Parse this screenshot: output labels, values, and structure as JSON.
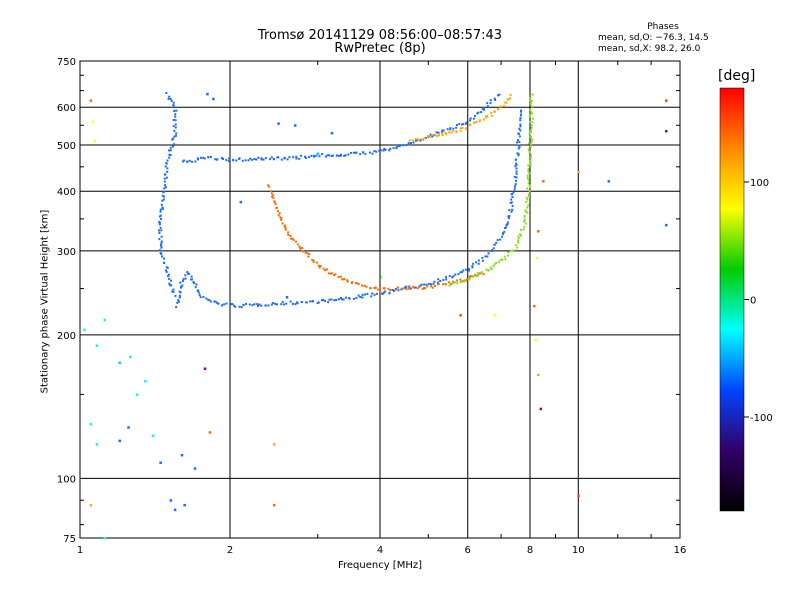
{
  "chart_data": {
    "type": "scatter",
    "title": "Tromsø 20141129 08:56:00–08:57:43",
    "subtitle": "RwPretec (8p)",
    "xlabel": "Frequency [MHz]",
    "ylabel": "Stationary phase Virtual Height [km]",
    "x_scale": "log",
    "y_scale": "log",
    "xlim": [
      1,
      16
    ],
    "ylim": [
      75,
      750
    ],
    "x_ticks": [
      1,
      2,
      4,
      6,
      8,
      10,
      16
    ],
    "y_ticks": [
      75,
      100,
      200,
      300,
      400,
      500,
      600,
      750
    ],
    "grid": true,
    "phase_stats": {
      "header": "Phases",
      "line_o": "mean, sd,O: −76.3, 14.5",
      "line_x": "mean, sd,X:  98.2, 26.0"
    },
    "colorbar": {
      "label": "[deg]",
      "ticks": [
        100,
        0,
        -100
      ],
      "range": [
        -180,
        180
      ],
      "colors": [
        "#ff0000",
        "#ff8800",
        "#ffff00",
        "#00cc00",
        "#00ffff",
        "#0044ff",
        "#330066",
        "#000000"
      ]
    },
    "traces": [
      {
        "color": "#1a6bff",
        "points": [
          [
            1.57,
            230
          ],
          [
            1.6,
            260
          ],
          [
            1.65,
            270
          ],
          [
            1.75,
            240
          ],
          [
            1.9,
            232
          ],
          [
            2.1,
            230
          ],
          [
            2.4,
            232
          ],
          [
            2.8,
            234
          ],
          [
            3.2,
            236
          ],
          [
            3.6,
            240
          ],
          [
            4.0,
            244
          ],
          [
            4.5,
            250
          ],
          [
            5.0,
            256
          ],
          [
            5.5,
            264
          ],
          [
            6.0,
            274
          ],
          [
            6.5,
            290
          ],
          [
            7.0,
            320
          ],
          [
            7.3,
            360
          ],
          [
            7.5,
            430
          ],
          [
            7.6,
            520
          ],
          [
            7.65,
            600
          ]
        ]
      },
      {
        "color": "#ff6a00",
        "points": [
          [
            2.4,
            410
          ],
          [
            2.5,
            360
          ],
          [
            2.6,
            330
          ],
          [
            2.8,
            300
          ],
          [
            3.0,
            280
          ],
          [
            3.2,
            268
          ],
          [
            3.5,
            258
          ],
          [
            3.8,
            252
          ],
          [
            4.1,
            249
          ],
          [
            4.5,
            250
          ],
          [
            5.0,
            252
          ],
          [
            5.5,
            256
          ],
          [
            6.0,
            262
          ],
          [
            6.5,
            270
          ]
        ]
      },
      {
        "color": "#88dd22",
        "points": [
          [
            5.5,
            255
          ],
          [
            6.0,
            262
          ],
          [
            6.5,
            272
          ],
          [
            7.0,
            285
          ],
          [
            7.5,
            305
          ],
          [
            7.8,
            340
          ],
          [
            7.95,
            400
          ],
          [
            8.0,
            480
          ],
          [
            8.05,
            560
          ],
          [
            8.05,
            640
          ]
        ]
      },
      {
        "color": "#1a6bff",
        "points": [
          [
            1.6,
            460
          ],
          [
            1.8,
            470
          ],
          [
            2.0,
            465
          ],
          [
            2.3,
            468
          ],
          [
            2.7,
            470
          ],
          [
            3.0,
            475
          ],
          [
            3.5,
            478
          ],
          [
            4.0,
            485
          ],
          [
            4.5,
            500
          ],
          [
            5.0,
            520
          ],
          [
            5.5,
            540
          ],
          [
            6.0,
            560
          ],
          [
            6.5,
            600
          ],
          [
            7.0,
            640
          ]
        ]
      },
      {
        "color": "#ffaa00",
        "points": [
          [
            4.6,
            510
          ],
          [
            5.0,
            520
          ],
          [
            5.5,
            530
          ],
          [
            6.0,
            545
          ],
          [
            6.5,
            570
          ],
          [
            7.0,
            600
          ],
          [
            7.4,
            640
          ]
        ]
      },
      {
        "color": "#1a6bff",
        "points": [
          [
            1.5,
            640
          ],
          [
            1.55,
            600
          ],
          [
            1.55,
            520
          ],
          [
            1.5,
            470
          ],
          [
            1.48,
            400
          ],
          [
            1.45,
            350
          ],
          [
            1.45,
            300
          ],
          [
            1.5,
            270
          ],
          [
            1.55,
            240
          ]
        ]
      }
    ],
    "scatter_points": [
      {
        "x": 1.05,
        "y": 620,
        "c": "#ff6a00"
      },
      {
        "x": 1.06,
        "y": 560,
        "c": "#ffff00"
      },
      {
        "x": 1.07,
        "y": 510,
        "c": "#ffff00"
      },
      {
        "x": 1.02,
        "y": 205,
        "c": "#00ffff"
      },
      {
        "x": 1.08,
        "y": 190,
        "c": "#00ffff"
      },
      {
        "x": 1.12,
        "y": 215,
        "c": "#00ffff"
      },
      {
        "x": 1.2,
        "y": 175,
        "c": "#00ccff"
      },
      {
        "x": 1.26,
        "y": 180,
        "c": "#00ffff"
      },
      {
        "x": 1.3,
        "y": 150,
        "c": "#00ffff"
      },
      {
        "x": 1.35,
        "y": 160,
        "c": "#00ffff"
      },
      {
        "x": 1.05,
        "y": 130,
        "c": "#00ffff"
      },
      {
        "x": 1.08,
        "y": 118,
        "c": "#00ffff"
      },
      {
        "x": 1.2,
        "y": 120,
        "c": "#1a6bff"
      },
      {
        "x": 1.25,
        "y": 128,
        "c": "#1a6bff"
      },
      {
        "x": 1.4,
        "y": 123,
        "c": "#00ffff"
      },
      {
        "x": 1.45,
        "y": 108,
        "c": "#1a6bff"
      },
      {
        "x": 1.6,
        "y": 112,
        "c": "#1a6bff"
      },
      {
        "x": 1.7,
        "y": 105,
        "c": "#1a6bff"
      },
      {
        "x": 1.52,
        "y": 90,
        "c": "#1a6bff"
      },
      {
        "x": 1.55,
        "y": 86,
        "c": "#1a6bff"
      },
      {
        "x": 1.62,
        "y": 88,
        "c": "#1a6bff"
      },
      {
        "x": 1.05,
        "y": 88,
        "c": "#ffaa00"
      },
      {
        "x": 1.12,
        "y": 75,
        "c": "#00ffff"
      },
      {
        "x": 1.78,
        "y": 170,
        "c": "#7a00cc"
      },
      {
        "x": 1.82,
        "y": 125,
        "c": "#ff6a00"
      },
      {
        "x": 2.45,
        "y": 88,
        "c": "#ff6a00"
      },
      {
        "x": 2.45,
        "y": 118,
        "c": "#ffaa00"
      },
      {
        "x": 1.8,
        "y": 640,
        "c": "#1a6bff"
      },
      {
        "x": 1.85,
        "y": 625,
        "c": "#1a6bff"
      },
      {
        "x": 2.1,
        "y": 380,
        "c": "#1a6bff"
      },
      {
        "x": 2.5,
        "y": 555,
        "c": "#1a6bff"
      },
      {
        "x": 2.7,
        "y": 550,
        "c": "#1a6bff"
      },
      {
        "x": 2.6,
        "y": 240,
        "c": "#1a6bff"
      },
      {
        "x": 3.0,
        "y": 480,
        "c": "#00ccff"
      },
      {
        "x": 3.2,
        "y": 530,
        "c": "#1a6bff"
      },
      {
        "x": 4.0,
        "y": 265,
        "c": "#00cc00"
      },
      {
        "x": 4.0,
        "y": 245,
        "c": "#ff6a00"
      },
      {
        "x": 5.8,
        "y": 220,
        "c": "#ff4400"
      },
      {
        "x": 6.8,
        "y": 220,
        "c": "#ffff00"
      },
      {
        "x": 8.2,
        "y": 195,
        "c": "#ffff00"
      },
      {
        "x": 8.4,
        "y": 140,
        "c": "#cc0000"
      },
      {
        "x": 8.3,
        "y": 165,
        "c": "#ffaa00"
      },
      {
        "x": 8.3,
        "y": 330,
        "c": "#ff6a00"
      },
      {
        "x": 8.25,
        "y": 290,
        "c": "#ffff00"
      },
      {
        "x": 8.15,
        "y": 230,
        "c": "#ff6a00"
      },
      {
        "x": 10.0,
        "y": 440,
        "c": "#ffaa00"
      },
      {
        "x": 10.0,
        "y": 92,
        "c": "#ff4400"
      },
      {
        "x": 11.5,
        "y": 420,
        "c": "#1a6bff"
      },
      {
        "x": 15.0,
        "y": 620,
        "c": "#ff4400"
      },
      {
        "x": 15.0,
        "y": 535,
        "c": "#333366"
      },
      {
        "x": 15.0,
        "y": 340,
        "c": "#1a6bff"
      },
      {
        "x": 8.5,
        "y": 420,
        "c": "#ff6a00"
      }
    ]
  }
}
